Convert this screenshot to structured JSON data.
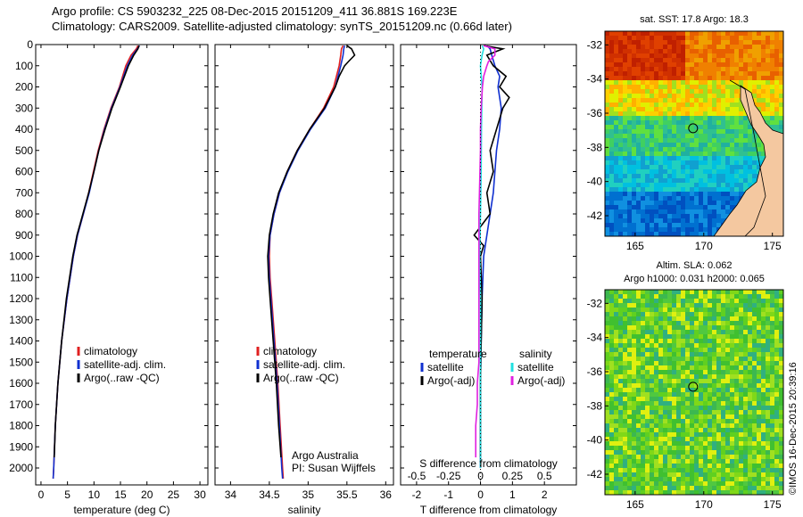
{
  "header": {
    "line1": "Argo profile: CS 5903232_225 08-Dec-2015 20151209_411 36.881S 169.223E",
    "line2": "Climatology: CARS2009. Satellite-adjusted climatology: synTS_20151209.nc (0.66d later)"
  },
  "colors": {
    "climatology": "#e02020",
    "satellite": "#1030d0",
    "argo": "#000000",
    "sal_satellite": "#20e0e0",
    "sal_argo": "#e020e0",
    "land": "#f4c8a0"
  },
  "chart_data": [
    {
      "type": "line",
      "id": "temperature",
      "xlabel": "temperature (deg C)",
      "ylabel": "",
      "xlim": [
        -1,
        31.5
      ],
      "ylim": [
        2080,
        0
      ],
      "xticks": [
        0,
        5,
        10,
        15,
        20,
        25,
        30
      ],
      "yticks": [
        0,
        100,
        200,
        300,
        400,
        500,
        600,
        700,
        800,
        900,
        1000,
        1100,
        1200,
        1300,
        1400,
        1500,
        1600,
        1700,
        1800,
        1900,
        2000
      ],
      "legend": [
        "climatology",
        "satellite-adj. clim.",
        "Argo(..raw -QC)"
      ],
      "legend_position": "middle-right",
      "series": [
        {
          "name": "climatology",
          "depth": [
            5,
            20,
            50,
            100,
            200,
            300,
            400,
            500,
            600,
            700,
            800,
            900,
            1000,
            1200,
            1400,
            1600,
            1800,
            2000,
            2050
          ],
          "values": [
            18.3,
            18.0,
            17.0,
            16.0,
            14.8,
            13.2,
            11.9,
            10.8,
            9.9,
            9.0,
            8.0,
            6.9,
            6.1,
            4.9,
            3.9,
            3.2,
            2.7,
            2.4,
            2.3
          ]
        },
        {
          "name": "satellite-adj. clim.",
          "depth": [
            5,
            20,
            50,
            100,
            200,
            300,
            400,
            500,
            600,
            700,
            800,
            900,
            1000,
            1200,
            1400,
            1600,
            1800,
            2000,
            2050
          ],
          "values": [
            18.6,
            18.2,
            17.3,
            16.3,
            14.9,
            13.3,
            12.0,
            10.9,
            10.0,
            9.1,
            8.0,
            6.9,
            6.1,
            4.9,
            3.9,
            3.2,
            2.7,
            2.4,
            2.3
          ]
        },
        {
          "name": "Argo(..raw -QC)",
          "depth": [
            5,
            20,
            50,
            100,
            200,
            300,
            400,
            500,
            600,
            700,
            800,
            900,
            1000,
            1200,
            1400,
            1600,
            1800,
            1950
          ],
          "values": [
            18.5,
            18.3,
            17.5,
            16.5,
            15.0,
            13.4,
            12.1,
            10.9,
            10.0,
            9.0,
            7.9,
            6.8,
            6.0,
            4.8,
            3.9,
            3.2,
            2.7,
            2.5
          ]
        }
      ]
    },
    {
      "type": "line",
      "id": "salinity",
      "xlabel": "salinity",
      "xlim": [
        33.8,
        36.1
      ],
      "ylim": [
        2080,
        0
      ],
      "xticks": [
        34,
        34.5,
        35,
        35.5,
        36
      ],
      "legend": [
        "climatology",
        "satellite-adj. clim.",
        "Argo(..raw -QC)"
      ],
      "legend_position": "middle-right",
      "annotation": [
        "Argo Australia",
        "PI: Susan Wijffels"
      ],
      "series": [
        {
          "name": "climatology",
          "depth": [
            5,
            20,
            50,
            100,
            200,
            300,
            400,
            500,
            600,
            700,
            800,
            900,
            1000,
            1100,
            1200,
            1400,
            1600,
            1800,
            2000,
            2050
          ],
          "values": [
            35.45,
            35.43,
            35.42,
            35.4,
            35.33,
            35.2,
            35.02,
            34.86,
            34.73,
            34.63,
            34.56,
            34.51,
            34.5,
            34.51,
            34.53,
            34.57,
            34.61,
            34.64,
            34.67,
            34.68
          ]
        },
        {
          "name": "satellite-adj. clim.",
          "depth": [
            5,
            20,
            50,
            100,
            200,
            300,
            400,
            500,
            600,
            700,
            800,
            900,
            1000,
            1100,
            1200,
            1400,
            1600,
            1800,
            2000,
            2050
          ],
          "values": [
            35.47,
            35.46,
            35.45,
            35.42,
            35.35,
            35.22,
            35.03,
            34.87,
            34.74,
            34.63,
            34.56,
            34.51,
            34.49,
            34.5,
            34.52,
            34.56,
            34.6,
            34.63,
            34.66,
            34.67
          ]
        },
        {
          "name": "Argo(..raw -QC)",
          "depth": [
            5,
            20,
            50,
            80,
            100,
            150,
            200,
            300,
            400,
            500,
            600,
            700,
            800,
            900,
            1000,
            1100,
            1200,
            1400,
            1600,
            1800,
            1950
          ],
          "values": [
            35.5,
            35.56,
            35.6,
            35.52,
            35.47,
            35.4,
            35.35,
            35.21,
            35.02,
            34.86,
            34.73,
            34.62,
            34.55,
            34.5,
            34.48,
            34.49,
            34.51,
            34.55,
            34.59,
            34.62,
            34.65
          ]
        }
      ]
    },
    {
      "type": "line",
      "id": "difference",
      "xlabel": "T difference from climatology",
      "xlabel_top": "S difference from climatology",
      "xlim": [
        -2.5,
        3
      ],
      "ylim": [
        2080,
        0
      ],
      "xticks": [
        -2,
        -1,
        0,
        1,
        2
      ],
      "xticks_top": [
        {
          "t": -2,
          "label": "-0.5"
        },
        {
          "t": -1,
          "label": "-0.25"
        },
        {
          "t": 0,
          "label": "0"
        },
        {
          "t": 1,
          "label": "0.25"
        },
        {
          "t": 2,
          "label": "0.5"
        }
      ],
      "legend_left_title": "temperature",
      "legend_right_title": "salinity",
      "legend_left": [
        "satellite",
        "Argo(-adj)"
      ],
      "legend_right": [
        "satellite",
        "Argo(-adj)"
      ],
      "series": [
        {
          "name": "T satellite",
          "depth": [
            5,
            20,
            50,
            100,
            150,
            200,
            300,
            400,
            500,
            600,
            700,
            800,
            900,
            1000,
            1200,
            1400,
            1600,
            1800,
            2000
          ],
          "values": [
            0.2,
            0.3,
            0.35,
            0.45,
            0.6,
            0.55,
            0.65,
            0.6,
            0.5,
            0.45,
            0.4,
            0.3,
            0.2,
            0.1,
            0.05,
            0.02,
            0.0,
            0.0,
            0.0
          ]
        },
        {
          "name": "T Argo(-adj)",
          "depth": [
            5,
            20,
            50,
            100,
            150,
            200,
            250,
            300,
            400,
            500,
            600,
            700,
            800,
            900,
            950,
            1000,
            1200,
            1400,
            1600,
            1800,
            1950
          ],
          "values": [
            0.1,
            0.7,
            0.2,
            0.4,
            0.8,
            0.6,
            0.9,
            0.7,
            0.5,
            0.3,
            0.4,
            0.2,
            0.3,
            -0.2,
            0.1,
            0.0,
            0.05,
            0.02,
            0.0,
            0.0,
            0.0
          ]
        },
        {
          "name": "S satellite",
          "depth": [
            5,
            20,
            50,
            100,
            200,
            300,
            400,
            600,
            800,
            1000,
            1200,
            1400,
            1600,
            1800,
            2000
          ],
          "values": [
            0.05,
            0.1,
            0.05,
            0.0,
            0.05,
            0.04,
            0.03,
            0.02,
            0.0,
            -0.02,
            0.0,
            0.0,
            0.0,
            0.0,
            0.0
          ]
        },
        {
          "name": "S Argo(-adj)",
          "depth": [
            5,
            20,
            50,
            80,
            100,
            150,
            200,
            300,
            400,
            500,
            800,
            1200,
            1500,
            1600,
            1700,
            1800,
            1950
          ],
          "values": [
            0.1,
            0.45,
            0.45,
            0.25,
            0.2,
            0.1,
            0.06,
            0.02,
            0.0,
            0.0,
            -0.05,
            -0.05,
            -0.05,
            -0.1,
            -0.1,
            -0.15,
            -0.15
          ]
        }
      ]
    },
    {
      "type": "heatmap",
      "id": "sst_map",
      "title": "sat. SST: 17.8 Argo: 18.3",
      "xlim": [
        162.8,
        175.8
      ],
      "ylim": [
        -43.2,
        -31.2
      ],
      "xticks": [
        165,
        170,
        175
      ],
      "yticks": [
        -32,
        -34,
        -36,
        -38,
        -40,
        -42
      ],
      "marker": {
        "lon": 169.223,
        "lat": -36.881
      }
    },
    {
      "type": "heatmap",
      "id": "sla_map",
      "title": "Altim. SLA: 0.062",
      "subtitle": "Argo h1000: 0.031 h2000: 0.065",
      "xlim": [
        162.8,
        175.8
      ],
      "ylim": [
        -43.2,
        -31.2
      ],
      "xticks": [
        165,
        170,
        175
      ],
      "yticks": [
        -32,
        -34,
        -36,
        -38,
        -40,
        -42
      ],
      "marker": {
        "lon": 169.223,
        "lat": -36.881
      }
    }
  ],
  "credit": "©IMOS 16-Dec-2015 20:39:16"
}
